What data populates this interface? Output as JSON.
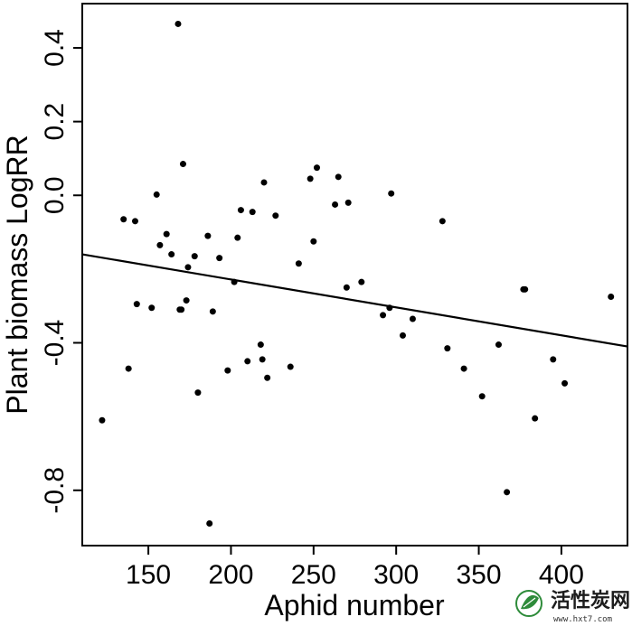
{
  "chart_data": {
    "type": "scatter",
    "title": "",
    "xlabel": "Aphid number",
    "ylabel": "Plant biomass LogRR",
    "xlim": [
      110,
      440
    ],
    "ylim": [
      -0.95,
      0.52
    ],
    "xticks": [
      150,
      200,
      250,
      300,
      350,
      400
    ],
    "xtick_labels": [
      "150",
      "200",
      "250",
      "300",
      "350",
      "400"
    ],
    "yticks": [
      -0.8,
      -0.4,
      0.0,
      0.2,
      0.4
    ],
    "ytick_labels": [
      "-0.8",
      "-0.4",
      "0.0",
      "0.2",
      "0.4"
    ],
    "grid": false,
    "points": [
      {
        "x": 122,
        "y": -0.61
      },
      {
        "x": 135,
        "y": -0.065
      },
      {
        "x": 138,
        "y": -0.47
      },
      {
        "x": 142,
        "y": -0.07
      },
      {
        "x": 143,
        "y": -0.295
      },
      {
        "x": 152,
        "y": -0.305
      },
      {
        "x": 155,
        "y": 0.002
      },
      {
        "x": 157,
        "y": -0.135
      },
      {
        "x": 161,
        "y": -0.105
      },
      {
        "x": 164,
        "y": -0.16
      },
      {
        "x": 168,
        "y": 0.465
      },
      {
        "x": 169,
        "y": -0.31
      },
      {
        "x": 170,
        "y": -0.31
      },
      {
        "x": 171,
        "y": 0.085
      },
      {
        "x": 173,
        "y": -0.285
      },
      {
        "x": 174,
        "y": -0.195
      },
      {
        "x": 178,
        "y": -0.165
      },
      {
        "x": 180,
        "y": -0.535
      },
      {
        "x": 186,
        "y": -0.11
      },
      {
        "x": 187,
        "y": -0.89
      },
      {
        "x": 189,
        "y": -0.315
      },
      {
        "x": 193,
        "y": -0.17
      },
      {
        "x": 198,
        "y": -0.475
      },
      {
        "x": 202,
        "y": -0.235
      },
      {
        "x": 204,
        "y": -0.115
      },
      {
        "x": 206,
        "y": -0.04
      },
      {
        "x": 210,
        "y": -0.45
      },
      {
        "x": 213,
        "y": -0.045
      },
      {
        "x": 218,
        "y": -0.405
      },
      {
        "x": 219,
        "y": -0.445
      },
      {
        "x": 220,
        "y": 0.035
      },
      {
        "x": 222,
        "y": -0.495
      },
      {
        "x": 227,
        "y": -0.055
      },
      {
        "x": 236,
        "y": -0.465
      },
      {
        "x": 241,
        "y": -0.185
      },
      {
        "x": 248,
        "y": 0.045
      },
      {
        "x": 250,
        "y": -0.125
      },
      {
        "x": 252,
        "y": 0.075
      },
      {
        "x": 263,
        "y": -0.025
      },
      {
        "x": 265,
        "y": 0.05
      },
      {
        "x": 270,
        "y": -0.25
      },
      {
        "x": 271,
        "y": -0.02
      },
      {
        "x": 279,
        "y": -0.235
      },
      {
        "x": 292,
        "y": -0.325
      },
      {
        "x": 296,
        "y": -0.305
      },
      {
        "x": 297,
        "y": 0.005
      },
      {
        "x": 304,
        "y": -0.38
      },
      {
        "x": 310,
        "y": -0.335
      },
      {
        "x": 328,
        "y": -0.07
      },
      {
        "x": 331,
        "y": -0.415
      },
      {
        "x": 341,
        "y": -0.47
      },
      {
        "x": 352,
        "y": -0.545
      },
      {
        "x": 362,
        "y": -0.405
      },
      {
        "x": 367,
        "y": -0.805
      },
      {
        "x": 377,
        "y": -0.255
      },
      {
        "x": 378,
        "y": -0.255
      },
      {
        "x": 384,
        "y": -0.605
      },
      {
        "x": 395,
        "y": -0.445
      },
      {
        "x": 402,
        "y": -0.51
      },
      {
        "x": 430,
        "y": -0.275
      }
    ],
    "trendline": {
      "x": [
        110,
        440
      ],
      "y": [
        -0.16,
        -0.41
      ]
    }
  },
  "watermark": {
    "text": "活性炭网",
    "subtext": "www.hxt7.com",
    "icon": "leaf-logo-icon",
    "color": "#2e8b3a"
  }
}
